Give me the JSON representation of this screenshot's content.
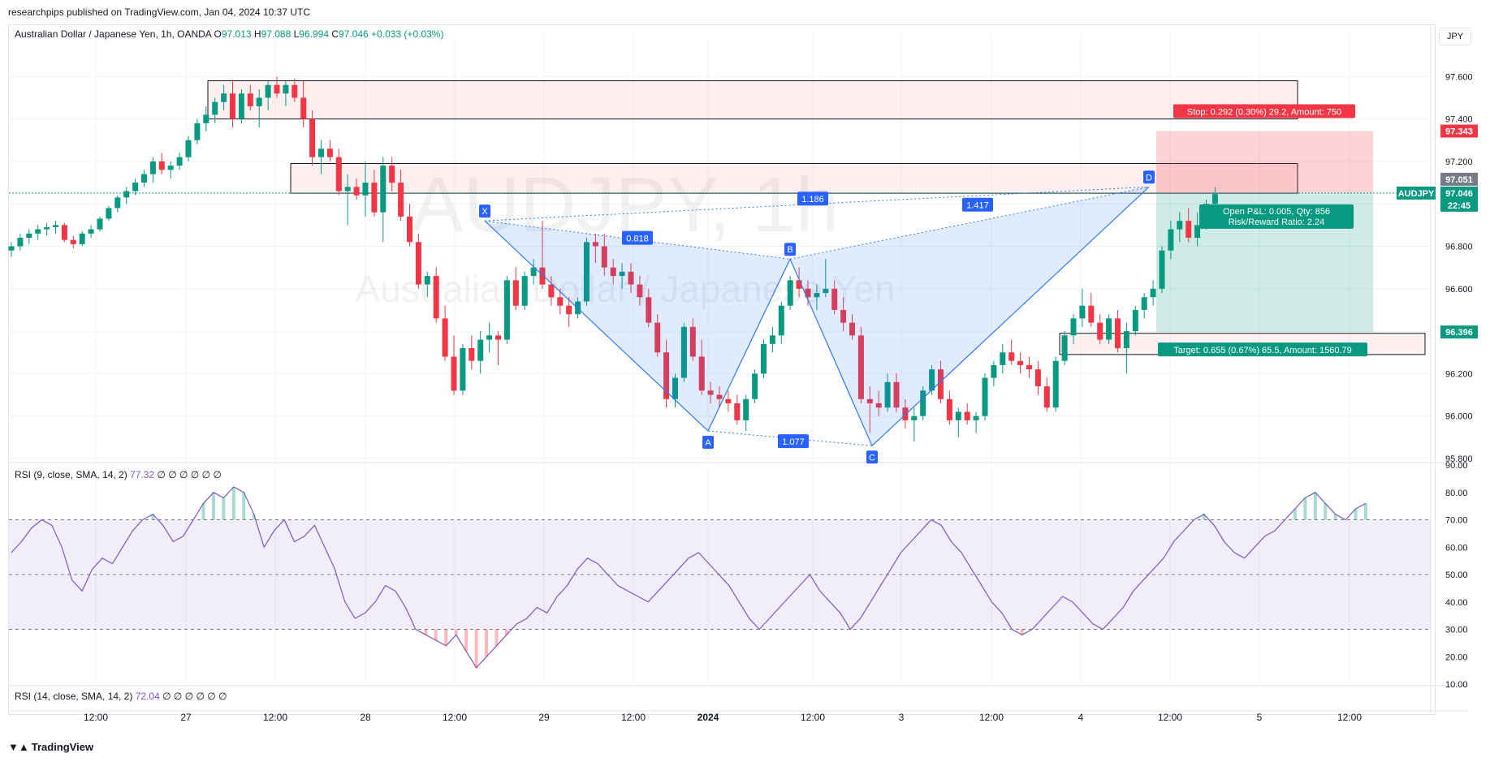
{
  "header": {
    "published": "researchpips published on TradingView.com, Jan 04, 2024 10:37 UTC"
  },
  "legend": {
    "symbol": "Australian Dollar / Japanese Yen, 1h, OANDA",
    "o_label": "O",
    "o": "97.013",
    "h_label": "H",
    "h": "97.088",
    "l_label": "L",
    "l": "96.994",
    "c_label": "C",
    "c": "97.046",
    "change": "+0.033 (+0.03%)"
  },
  "currency": "JPY",
  "watermark": {
    "line1": "AUDJPY, 1h",
    "line2": "Australian Dollar / Japanese Yen"
  },
  "rsi_pane_1": {
    "label": "RSI (9, close, SMA, 14, 2)",
    "value": "77.32",
    "extras": "∅ ∅ ∅ ∅ ∅ ∅"
  },
  "rsi_pane_2": {
    "label": "RSI (14, close, SMA, 14, 2)",
    "value": "72.04",
    "extras": "∅ ∅ ∅ ∅ ∅ ∅"
  },
  "footer": {
    "logo": "TradingView"
  },
  "colors": {
    "up": "#089981",
    "down": "#f23645",
    "pattern": "#3179f5",
    "rsi": "#7e57c2"
  },
  "chart_data": [
    {
      "type": "candlestick",
      "symbol": "AUDJPY",
      "interval": "1h",
      "y_axis": {
        "ticks": [
          "97.600",
          "97.400",
          "97.200",
          "97.000",
          "96.800",
          "96.600",
          "96.400",
          "96.200",
          "96.000",
          "95.800"
        ],
        "ylim": [
          95.8,
          97.8
        ]
      },
      "x_axis": {
        "ticks": [
          "12:00",
          "27",
          "12:00",
          "28",
          "12:00",
          "29",
          "12:00",
          "2024",
          "12:00",
          "3",
          "12:00",
          "4",
          "12:00",
          "5",
          "12:00"
        ]
      },
      "price_labels": [
        {
          "text": "97.343",
          "kind": "stop"
        },
        {
          "text": "97.051",
          "kind": "high"
        },
        {
          "text": "AUDJPY",
          "kind": "symbol"
        },
        {
          "text": "97.046",
          "kind": "last"
        },
        {
          "text": "22:45",
          "kind": "countdown"
        },
        {
          "text": "96.396",
          "kind": "target"
        }
      ],
      "harmonic_pattern": {
        "points": [
          {
            "label": "X",
            "price": 96.92
          },
          {
            "label": "A",
            "price": 95.93
          },
          {
            "label": "B",
            "price": 96.74
          },
          {
            "label": "C",
            "price": 95.86
          },
          {
            "label": "D",
            "price": 97.08
          }
        ],
        "ratios": [
          "0.818",
          "1.077",
          "1.417",
          "1.186"
        ]
      },
      "position": {
        "stop_label": "Stop: 0.292 (0.30%) 29.2, Amount: 750",
        "pnl_label_1": "Open P&L: 0.005, Qty: 856",
        "pnl_label_2": "Risk/Reward Ratio: 2.24",
        "target_label": "Target: 0.655 (0.67%) 65.5, Amount: 1560.79",
        "entry": 97.051,
        "stop": 97.343,
        "target": 96.396
      },
      "zones": [
        {
          "from": 97.4,
          "to": 97.58
        },
        {
          "from": 97.05,
          "to": 97.19
        },
        {
          "from": 96.29,
          "to": 96.39
        }
      ],
      "candles": [
        [
          96.78,
          96.82,
          96.75,
          96.8
        ],
        [
          96.8,
          96.86,
          96.78,
          96.84
        ],
        [
          96.84,
          96.88,
          96.81,
          96.86
        ],
        [
          96.86,
          96.9,
          96.83,
          96.88
        ],
        [
          96.88,
          96.91,
          96.85,
          96.89
        ],
        [
          96.89,
          96.92,
          96.86,
          96.9
        ],
        [
          96.9,
          96.91,
          96.82,
          96.83
        ],
        [
          96.83,
          96.85,
          96.79,
          96.81
        ],
        [
          96.81,
          96.87,
          96.8,
          96.86
        ],
        [
          96.86,
          96.9,
          96.84,
          96.88
        ],
        [
          96.88,
          96.94,
          96.87,
          96.93
        ],
        [
          96.93,
          96.99,
          96.92,
          96.98
        ],
        [
          96.98,
          97.04,
          96.96,
          97.03
        ],
        [
          97.03,
          97.08,
          97.0,
          97.06
        ],
        [
          97.06,
          97.12,
          97.04,
          97.1
        ],
        [
          97.1,
          97.16,
          97.08,
          97.14
        ],
        [
          97.14,
          97.22,
          97.1,
          97.2
        ],
        [
          97.2,
          97.24,
          97.14,
          97.16
        ],
        [
          97.16,
          97.2,
          97.12,
          97.18
        ],
        [
          97.18,
          97.24,
          97.16,
          97.22
        ],
        [
          97.22,
          97.32,
          97.2,
          97.3
        ],
        [
          97.3,
          97.4,
          97.28,
          97.38
        ],
        [
          97.38,
          97.46,
          97.34,
          97.42
        ],
        [
          97.42,
          97.5,
          97.38,
          97.48
        ],
        [
          97.48,
          97.56,
          97.44,
          97.52
        ],
        [
          97.52,
          97.58,
          97.36,
          97.4
        ],
        [
          97.4,
          97.54,
          97.38,
          97.52
        ],
        [
          97.52,
          97.56,
          97.44,
          97.46
        ],
        [
          97.46,
          97.54,
          97.36,
          97.5
        ],
        [
          97.5,
          97.58,
          97.44,
          97.56
        ],
        [
          97.56,
          97.6,
          97.5,
          97.52
        ],
        [
          97.52,
          97.58,
          97.46,
          97.56
        ],
        [
          97.56,
          97.59,
          97.48,
          97.5
        ],
        [
          97.5,
          97.58,
          97.36,
          97.4
        ],
        [
          97.4,
          97.44,
          97.18,
          97.22
        ],
        [
          97.22,
          97.3,
          97.14,
          97.26
        ],
        [
          97.26,
          97.3,
          97.2,
          97.22
        ],
        [
          97.22,
          97.26,
          97.04,
          97.06
        ],
        [
          97.06,
          97.14,
          96.9,
          97.08
        ],
        [
          97.08,
          97.12,
          97.02,
          97.04
        ],
        [
          97.04,
          97.2,
          96.94,
          97.1
        ],
        [
          97.1,
          97.16,
          96.94,
          96.96
        ],
        [
          96.96,
          97.22,
          96.82,
          97.18
        ],
        [
          97.18,
          97.22,
          97.06,
          97.1
        ],
        [
          97.1,
          97.16,
          96.92,
          96.94
        ],
        [
          96.94,
          97.0,
          96.8,
          96.82
        ],
        [
          96.82,
          96.86,
          96.6,
          96.62
        ],
        [
          96.62,
          96.68,
          96.56,
          96.66
        ],
        [
          96.66,
          96.7,
          96.44,
          96.46
        ],
        [
          96.46,
          96.52,
          96.26,
          96.28
        ],
        [
          96.28,
          96.38,
          96.1,
          96.12
        ],
        [
          96.12,
          96.34,
          96.1,
          96.32
        ],
        [
          96.32,
          96.38,
          96.22,
          96.26
        ],
        [
          96.26,
          96.4,
          96.2,
          96.36
        ],
        [
          96.36,
          96.44,
          96.3,
          96.38
        ],
        [
          96.38,
          96.4,
          96.24,
          96.36
        ],
        [
          96.36,
          96.66,
          96.34,
          96.64
        ],
        [
          96.64,
          96.7,
          96.5,
          96.52
        ],
        [
          96.52,
          96.68,
          96.5,
          96.66
        ],
        [
          96.66,
          96.74,
          96.62,
          96.7
        ],
        [
          96.7,
          96.92,
          96.6,
          96.62
        ],
        [
          96.62,
          96.66,
          96.52,
          96.56
        ],
        [
          96.56,
          96.6,
          96.48,
          96.52
        ],
        [
          96.52,
          96.56,
          96.42,
          96.48
        ],
        [
          96.48,
          96.56,
          96.46,
          96.54
        ],
        [
          96.54,
          96.84,
          96.52,
          96.82
        ],
        [
          96.82,
          96.86,
          96.72,
          96.8
        ],
        [
          96.8,
          96.86,
          96.66,
          96.7
        ],
        [
          96.7,
          96.74,
          96.62,
          96.66
        ],
        [
          96.66,
          96.72,
          96.6,
          96.68
        ],
        [
          96.68,
          96.72,
          96.58,
          96.62
        ],
        [
          96.62,
          96.66,
          96.52,
          96.56
        ],
        [
          96.56,
          96.6,
          96.42,
          96.44
        ],
        [
          96.44,
          96.48,
          96.28,
          96.3
        ],
        [
          96.3,
          96.36,
          96.04,
          96.08
        ],
        [
          96.08,
          96.2,
          96.04,
          96.18
        ],
        [
          96.18,
          96.44,
          96.16,
          96.42
        ],
        [
          96.42,
          96.46,
          96.26,
          96.28
        ],
        [
          96.28,
          96.36,
          96.1,
          96.12
        ],
        [
          96.12,
          96.16,
          96.06,
          96.1
        ],
        [
          96.1,
          96.14,
          96.04,
          96.08
        ],
        [
          96.08,
          96.12,
          96.02,
          96.06
        ],
        [
          96.06,
          96.1,
          95.96,
          95.98
        ],
        [
          95.98,
          96.1,
          95.93,
          96.08
        ],
        [
          96.08,
          96.22,
          96.06,
          96.2
        ],
        [
          96.2,
          96.36,
          96.18,
          96.34
        ],
        [
          96.34,
          96.42,
          96.3,
          96.38
        ],
        [
          96.38,
          96.54,
          96.34,
          96.52
        ],
        [
          96.52,
          96.66,
          96.5,
          96.64
        ],
        [
          96.64,
          96.7,
          96.56,
          96.6
        ],
        [
          96.6,
          96.64,
          96.52,
          96.56
        ],
        [
          96.56,
          96.62,
          96.5,
          96.58
        ],
        [
          96.58,
          96.74,
          96.56,
          96.6
        ],
        [
          96.6,
          96.64,
          96.48,
          96.5
        ],
        [
          96.5,
          96.56,
          96.4,
          96.44
        ],
        [
          96.44,
          96.48,
          96.36,
          96.38
        ],
        [
          96.38,
          96.42,
          96.06,
          96.08
        ],
        [
          96.08,
          96.14,
          95.92,
          96.06
        ],
        [
          96.06,
          96.12,
          96.0,
          96.04
        ],
        [
          96.04,
          96.2,
          96.02,
          96.16
        ],
        [
          96.16,
          96.2,
          96.02,
          96.04
        ],
        [
          96.04,
          96.08,
          95.94,
          95.98
        ],
        [
          95.98,
          96.04,
          95.88,
          96.0
        ],
        [
          96.0,
          96.14,
          95.98,
          96.12
        ],
        [
          96.12,
          96.24,
          96.1,
          96.22
        ],
        [
          96.22,
          96.26,
          96.06,
          96.08
        ],
        [
          96.08,
          96.12,
          95.96,
          95.98
        ],
        [
          95.98,
          96.04,
          95.9,
          96.02
        ],
        [
          96.02,
          96.06,
          95.96,
          95.98
        ],
        [
          95.98,
          96.02,
          95.92,
          96.0
        ],
        [
          96.0,
          96.2,
          95.98,
          96.18
        ],
        [
          96.18,
          96.26,
          96.14,
          96.24
        ],
        [
          96.24,
          96.34,
          96.2,
          96.3
        ],
        [
          96.3,
          96.36,
          96.24,
          96.26
        ],
        [
          96.26,
          96.3,
          96.2,
          96.24
        ],
        [
          96.24,
          96.28,
          96.18,
          96.22
        ],
        [
          96.22,
          96.26,
          96.1,
          96.14
        ],
        [
          96.14,
          96.18,
          96.02,
          96.04
        ],
        [
          96.04,
          96.28,
          96.02,
          96.26
        ],
        [
          96.26,
          96.4,
          96.24,
          96.38
        ],
        [
          96.38,
          96.48,
          96.34,
          96.46
        ],
        [
          96.46,
          96.6,
          96.42,
          96.52
        ],
        [
          96.52,
          96.58,
          96.42,
          96.44
        ],
        [
          96.44,
          96.48,
          96.34,
          96.36
        ],
        [
          96.36,
          96.48,
          96.34,
          96.46
        ],
        [
          96.46,
          96.5,
          96.3,
          96.32
        ],
        [
          96.32,
          96.44,
          96.2,
          96.4
        ],
        [
          96.4,
          96.52,
          96.38,
          96.5
        ],
        [
          96.5,
          96.58,
          96.46,
          96.56
        ],
        [
          96.56,
          96.64,
          96.52,
          96.6
        ],
        [
          96.6,
          96.8,
          96.58,
          96.78
        ],
        [
          96.78,
          96.92,
          96.74,
          96.88
        ],
        [
          96.88,
          96.96,
          96.82,
          96.92
        ],
        [
          96.92,
          96.98,
          96.82,
          96.84
        ],
        [
          96.84,
          96.96,
          96.8,
          96.9
        ],
        [
          96.9,
          97.02,
          96.88,
          97.0
        ],
        [
          97.0,
          97.08,
          96.99,
          97.046
        ]
      ]
    },
    {
      "type": "line",
      "name": "RSI (9, close, SMA, 14, 2)",
      "y_axis": {
        "ticks": [
          "90.00",
          "80.00",
          "70.00",
          "60.00",
          "50.00",
          "40.00",
          "30.00",
          "20.00",
          "10.00"
        ],
        "ylim": [
          10,
          90
        ]
      },
      "bands": {
        "upper": 70,
        "middle": 50,
        "lower": 30
      },
      "values": [
        58,
        62,
        67,
        70,
        68,
        60,
        48,
        44,
        52,
        56,
        54,
        60,
        66,
        70,
        72,
        68,
        62,
        64,
        70,
        76,
        80,
        78,
        82,
        80,
        72,
        60,
        66,
        70,
        62,
        64,
        68,
        60,
        52,
        40,
        34,
        36,
        40,
        46,
        44,
        38,
        30,
        28,
        26,
        24,
        28,
        22,
        16,
        20,
        24,
        28,
        32,
        34,
        38,
        36,
        42,
        46,
        52,
        56,
        54,
        50,
        46,
        44,
        42,
        40,
        44,
        48,
        52,
        56,
        58,
        54,
        50,
        46,
        40,
        34,
        30,
        34,
        38,
        42,
        46,
        50,
        44,
        40,
        36,
        30,
        34,
        40,
        46,
        52,
        58,
        62,
        66,
        70,
        68,
        62,
        58,
        52,
        46,
        40,
        36,
        30,
        28,
        30,
        34,
        38,
        42,
        40,
        36,
        32,
        30,
        34,
        38,
        44,
        48,
        52,
        56,
        62,
        66,
        70,
        72,
        68,
        62,
        58,
        56,
        60,
        64,
        66,
        70,
        74,
        78,
        80,
        76,
        72,
        70,
        74,
        76
      ]
    }
  ]
}
